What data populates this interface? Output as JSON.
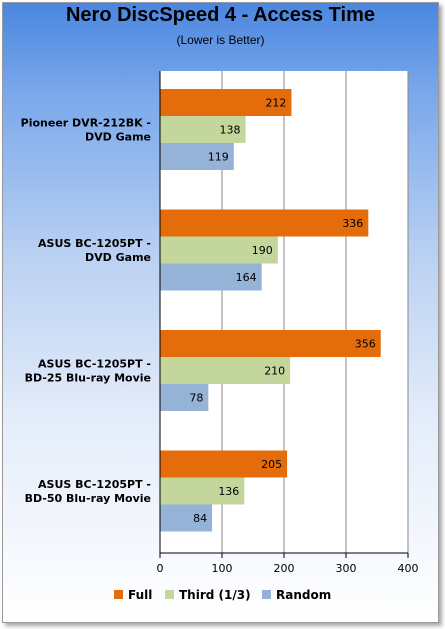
{
  "chart_data": {
    "type": "bar",
    "orientation": "horizontal",
    "title": "Nero DiscSpeed 4 - Access Time",
    "subtitle": "(Lower is Better)",
    "categories": [
      [
        "Pioneer DVR-212BK -",
        "DVD Game"
      ],
      [
        "ASUS BC-1205PT -",
        "DVD Game"
      ],
      [
        "ASUS BC-1205PT -",
        "BD-25 Blu-ray Movie"
      ],
      [
        "ASUS BC-1205PT -",
        "BD-50 Blu-ray Movie"
      ]
    ],
    "series": [
      {
        "name": "Full",
        "color": "#e46c0a",
        "values": [
          212,
          336,
          356,
          205
        ]
      },
      {
        "name": "Third (1/3)",
        "color": "#c3d69b",
        "values": [
          138,
          190,
          210,
          136
        ]
      },
      {
        "name": "Random",
        "color": "#95b3d7",
        "values": [
          119,
          164,
          78,
          84
        ]
      }
    ],
    "xlim": [
      0,
      400
    ],
    "xticks": [
      0,
      100,
      200,
      300,
      400
    ],
    "grid": true,
    "legend": "bottom"
  }
}
